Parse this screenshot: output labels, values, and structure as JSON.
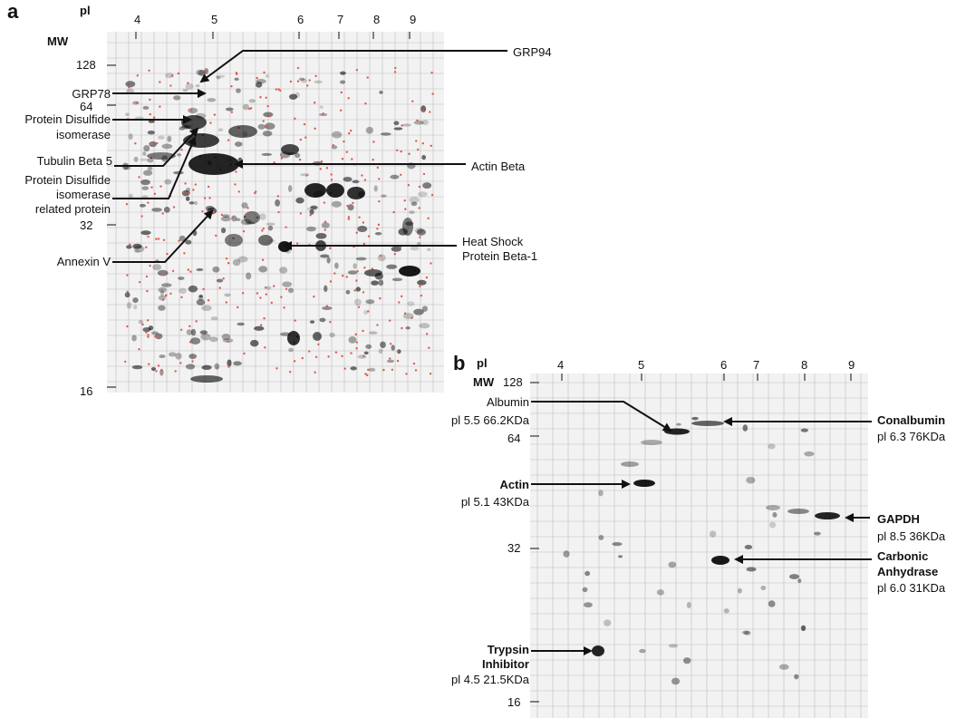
{
  "panel_a": {
    "letter": "a",
    "pi_label": "pl",
    "mw_label": "MW",
    "pi_ticks": [
      "4",
      "5",
      "6",
      "7",
      "8",
      "9"
    ],
    "mw_ticks": [
      "128",
      "64",
      "32",
      "16"
    ],
    "annotations": {
      "grp94": "GRP94",
      "grp78": "GRP78",
      "pdi_line1": "Protein Disulfide",
      "pdi_line2": "isomerase",
      "tubulin": "Tubulin Beta 5",
      "pdirp_line1": "Protein Disulfide",
      "pdirp_line2": "isomerase",
      "pdirp_line3": "related protein",
      "annexin": "Annexin V",
      "actin_beta": "Actin Beta",
      "hsp_line1": "Heat Shock",
      "hsp_line2": "Protein Beta-1"
    }
  },
  "panel_b": {
    "letter": "b",
    "pi_label": "pl",
    "mw_label": "MW",
    "pi_ticks": [
      "4",
      "5",
      "6",
      "7",
      "8",
      "9"
    ],
    "mw_ticks": [
      "128",
      "64",
      "32",
      "16"
    ],
    "annotations": {
      "albumin_name": "Albumin",
      "albumin_detail": "pl 5.5 66.2KDa",
      "actin_name": "Actin",
      "actin_detail": "pl 5.1 43KDa",
      "trypsin_line1": "Trypsin",
      "trypsin_line2": "Inhibitor",
      "trypsin_detail": "pl 4.5 21.5KDa",
      "conalbumin_name": "Conalbumin",
      "conalbumin_detail": "pl 6.3 76KDa",
      "gapdh_name": "GAPDH",
      "gapdh_detail": "pl 8.5 36KDa",
      "ca_line1": "Carbonic",
      "ca_line2": "Anhydrase",
      "ca_detail": "pl 6.0 31KDa"
    }
  },
  "colors": {
    "text": "#111111",
    "spot_marker": "#e05a4a",
    "gel_bg": "#f2f2f2",
    "grid": "#bdbdbd"
  }
}
